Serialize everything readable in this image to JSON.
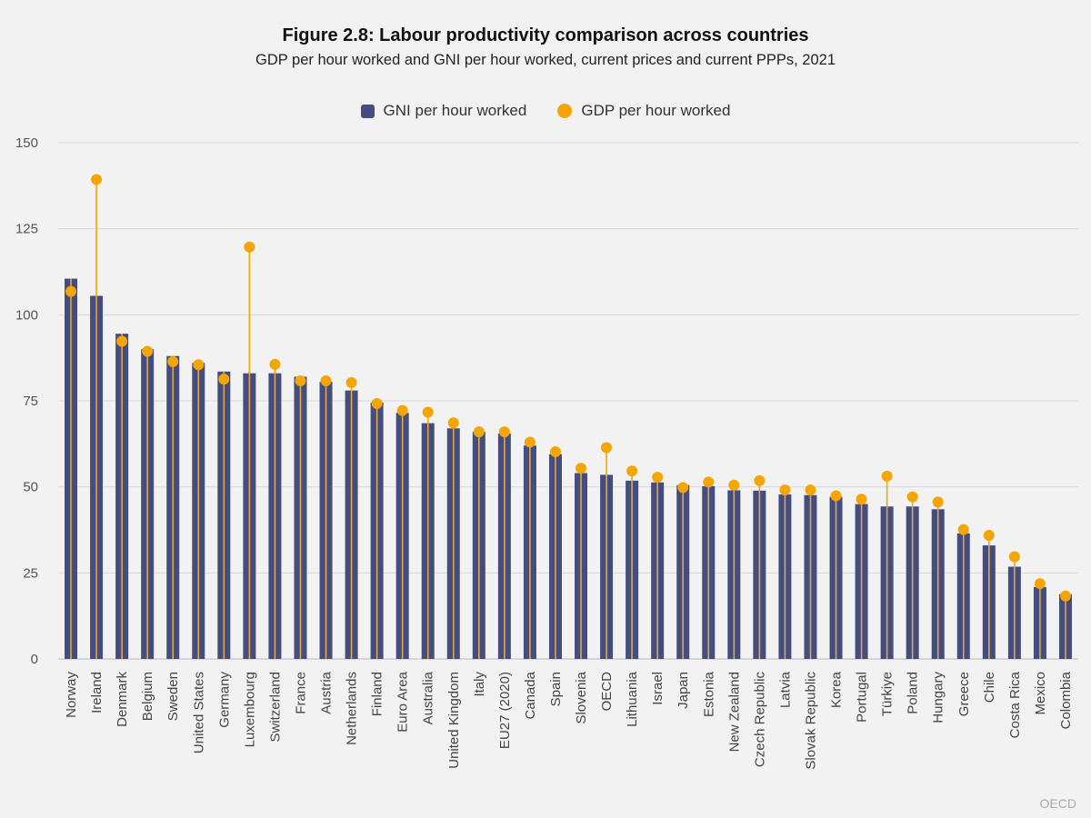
{
  "title": "Figure 2.8: Labour productivity comparison across countries",
  "subtitle": "GDP per hour worked and GNI per hour worked, current prices and current PPPs, 2021",
  "source": "OECD",
  "legend": {
    "gni_label": "GNI per hour worked",
    "gdp_label": "GDP per hour worked"
  },
  "colors": {
    "gni": "#454c7e",
    "gdp": "#f5a500",
    "stripe": "#e0a64a",
    "grid": "#d8d8d8"
  },
  "chart_data": {
    "type": "bar",
    "title": "Figure 2.8: Labour productivity comparison across countries",
    "subtitle": "GDP per hour worked and GNI per hour worked, current prices and current PPPs, 2021",
    "xlabel": "",
    "ylabel": "",
    "ylim": [
      0,
      150
    ],
    "yticks": [
      0,
      25,
      50,
      75,
      100,
      125,
      150
    ],
    "grid": true,
    "legend_position": "top",
    "categories": [
      "Norway",
      "Ireland",
      "Denmark",
      "Belgium",
      "Sweden",
      "United States",
      "Germany",
      "Luxembourg",
      "Switzerland",
      "France",
      "Austria",
      "Netherlands",
      "Finland",
      "Euro Area",
      "Australia",
      "United Kingdom",
      "Italy",
      "EU27 (2020)",
      "Canada",
      "Spain",
      "Slovenia",
      "OECD",
      "Lithuania",
      "Israel",
      "Japan",
      "Estonia",
      "New Zealand",
      "Czech Republic",
      "Latvia",
      "Slovak Republic",
      "Korea",
      "Portugal",
      "Türkiye",
      "Poland",
      "Hungary",
      "Greece",
      "Chile",
      "Costa Rica",
      "Mexico",
      "Colombia"
    ],
    "series": [
      {
        "name": "GNI per hour worked",
        "type": "bar",
        "values": [
          110.5,
          105.5,
          94.5,
          90,
          88,
          86,
          83.5,
          83,
          83,
          82,
          80.5,
          78,
          74.5,
          71.5,
          68.5,
          67,
          66,
          65.5,
          62,
          59.5,
          54,
          53.5,
          51.8,
          51.3,
          50.5,
          50.2,
          49,
          48.9,
          47.8,
          47.6,
          47.1,
          45,
          44.3,
          44.3,
          43.5,
          36.5,
          33,
          26.8,
          20.9,
          18.8
        ]
      },
      {
        "name": "GDP per hour worked",
        "type": "scatter",
        "values": [
          106.8,
          139.3,
          92.3,
          89.4,
          86.4,
          85.5,
          81.3,
          119.7,
          85.6,
          80.8,
          80.8,
          80.3,
          74.2,
          72.2,
          71.7,
          68.6,
          66,
          66,
          63,
          60.2,
          55.4,
          61.4,
          54.6,
          52.8,
          49.8,
          51.4,
          50.5,
          51.8,
          49.1,
          49.1,
          47.4,
          46.4,
          53.1,
          47.1,
          45.6,
          37.6,
          35.9,
          29.7,
          21.9,
          18.3
        ]
      }
    ]
  }
}
